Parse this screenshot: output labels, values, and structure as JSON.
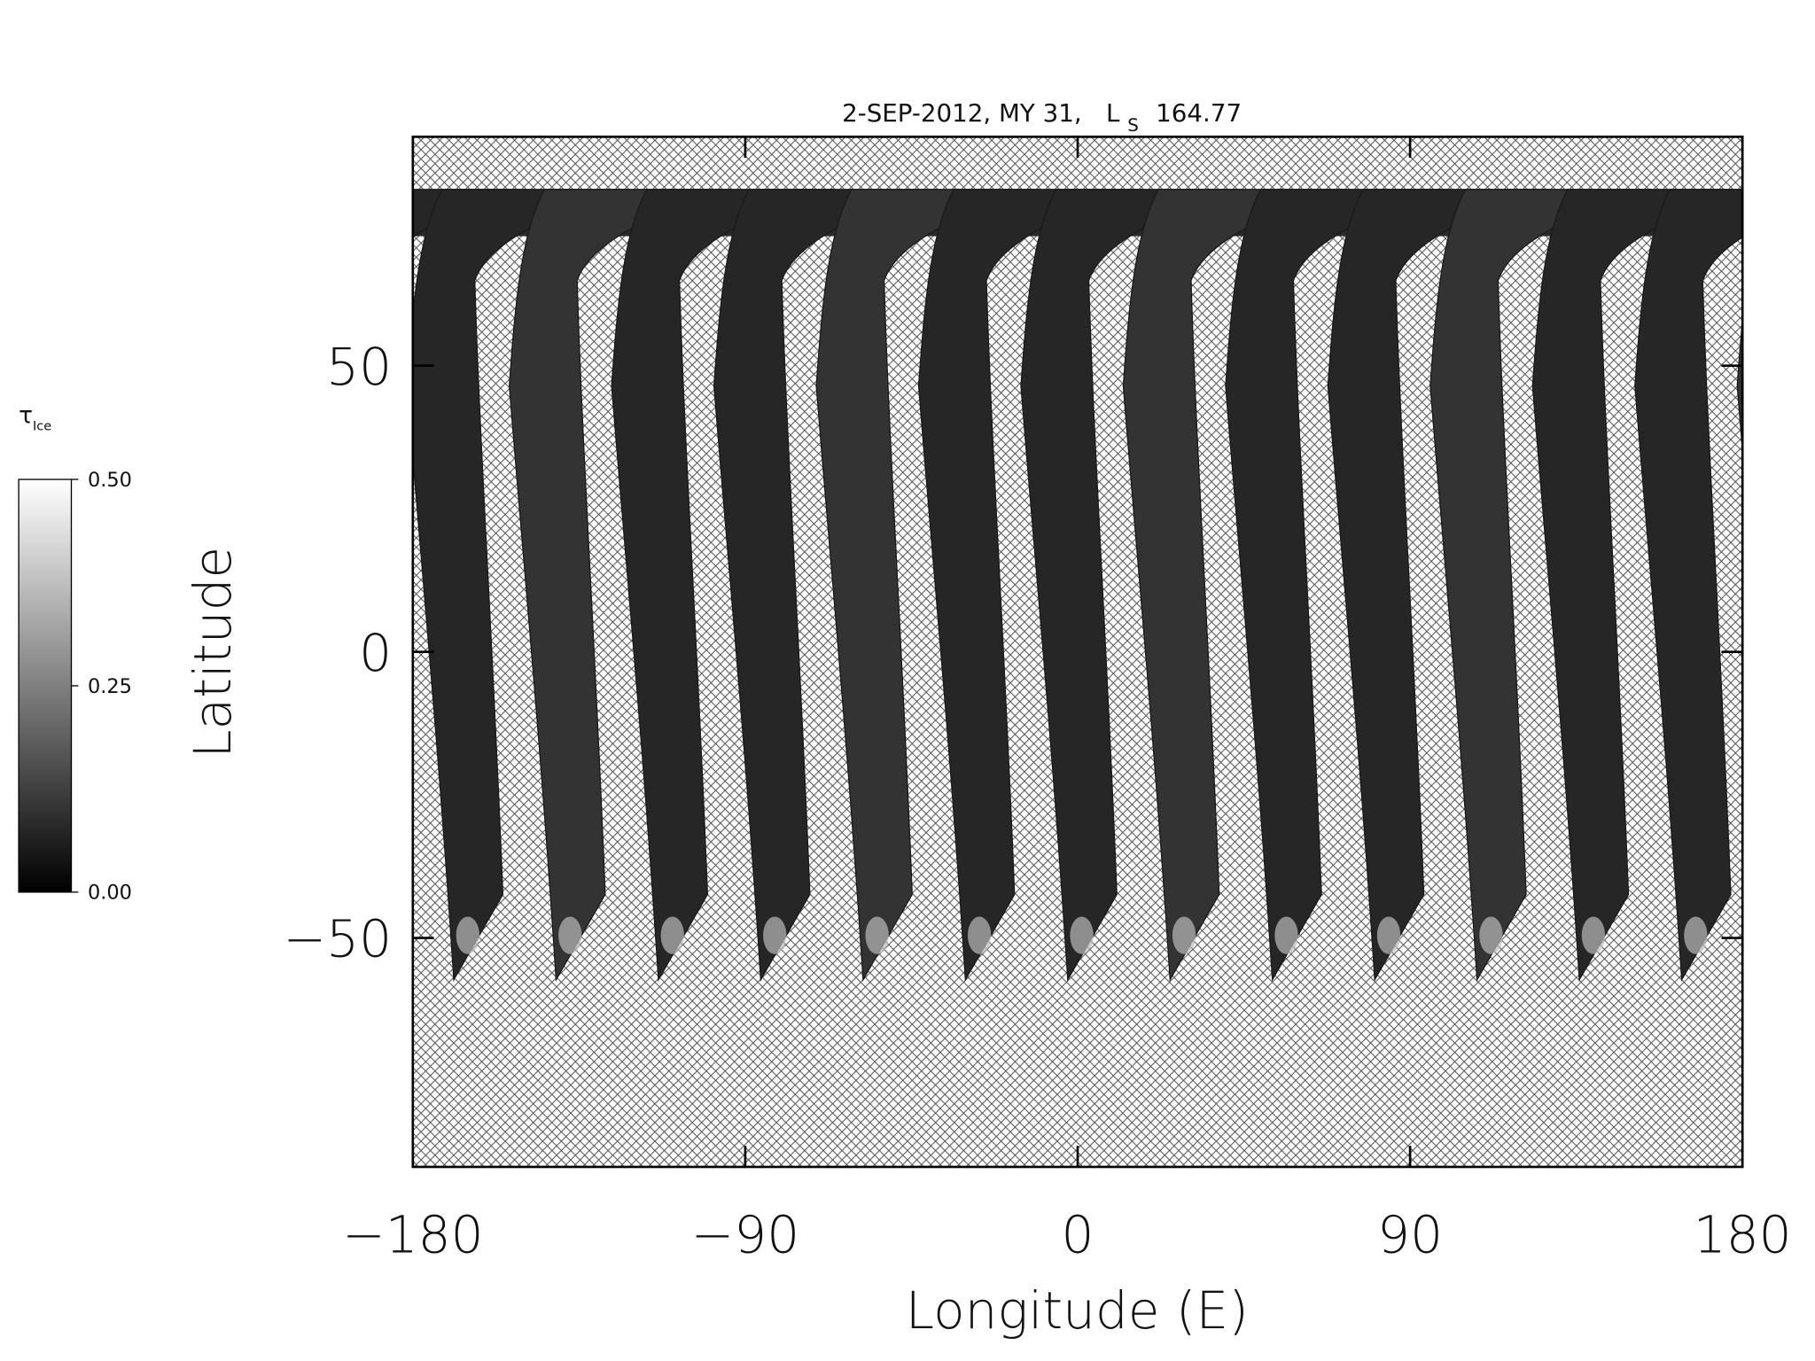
{
  "chart_data": {
    "type": "map",
    "title": "2-SEP-2012, MY 31,",
    "title_symbol": "L",
    "title_symbol_sub": "S",
    "title_value": "164.77",
    "x_label": "Longitude (E)",
    "y_label": "Latitude",
    "xlim": [
      -180,
      180
    ],
    "xticks": [
      {
        "value": -180,
        "label": "−180"
      },
      {
        "value": -90,
        "label": "−90"
      },
      0,
      90,
      180
    ],
    "ylim": [
      -90,
      90
    ],
    "yticks": [
      {
        "value": -50,
        "label": "−50"
      },
      0,
      50
    ],
    "colorbar": {
      "label": "τ",
      "label_sub": "Ice",
      "lim": [
        0,
        0.5
      ],
      "ticks": [
        {
          "value": 0,
          "label": "0.00"
        },
        {
          "value": 0.25,
          "label": "0.25"
        },
        {
          "value": 0.5,
          "label": "0.50"
        }
      ]
    }
  }
}
